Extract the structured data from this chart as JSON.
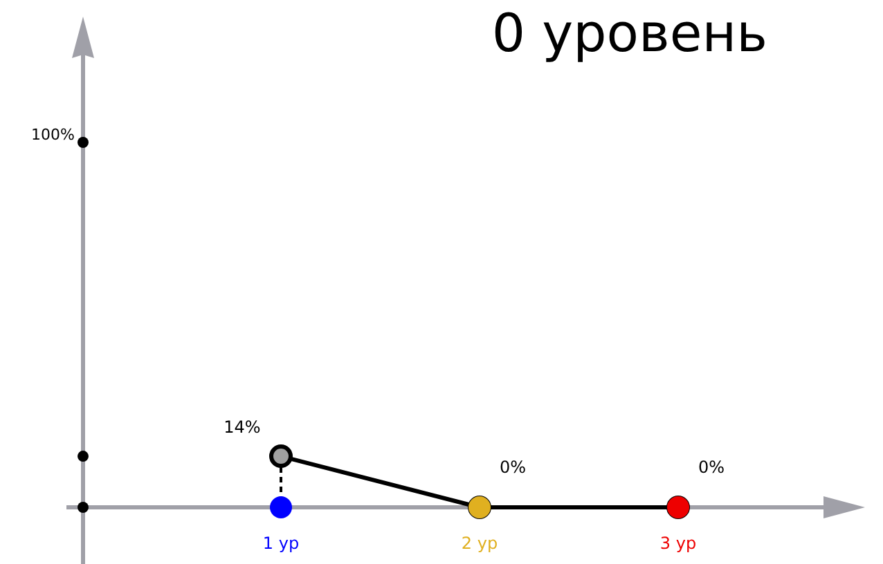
{
  "chart_data": {
    "type": "line",
    "title": "0 уровень",
    "categories": [
      "1 ур",
      "2 ур",
      "3 ур"
    ],
    "colors": [
      "#0000ff",
      "#e0b020",
      "#ee0000"
    ],
    "series": [
      {
        "color": "#000000",
        "values": [
          14,
          0,
          0
        ],
        "value_labels": [
          "14%",
          "0%",
          "0%"
        ]
      }
    ],
    "annotations": [
      "100%"
    ],
    "marker": "circle",
    "line_style": "solid"
  }
}
